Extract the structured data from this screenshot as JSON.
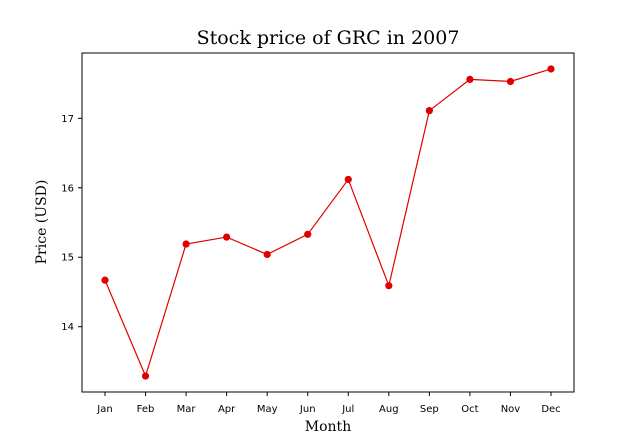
{
  "chart_data": {
    "type": "line",
    "title": "Stock price of GRC in 2007",
    "xlabel": "Month",
    "ylabel": "Price (USD)",
    "categories": [
      "Jan",
      "Feb",
      "Mar",
      "Apr",
      "May",
      "Jun",
      "Jul",
      "Aug",
      "Sep",
      "Oct",
      "Nov",
      "Dec"
    ],
    "series": [
      {
        "values": [
          14.67,
          13.29,
          15.19,
          15.29,
          15.04,
          15.33,
          16.12,
          14.59,
          17.11,
          17.56,
          17.53,
          17.71
        ],
        "color": "#e00000",
        "marker": "circle"
      }
    ],
    "yticks": [
      14,
      15,
      16,
      17
    ],
    "ylim": [
      13.06,
      17.94
    ],
    "grid": false,
    "legend": "none"
  }
}
